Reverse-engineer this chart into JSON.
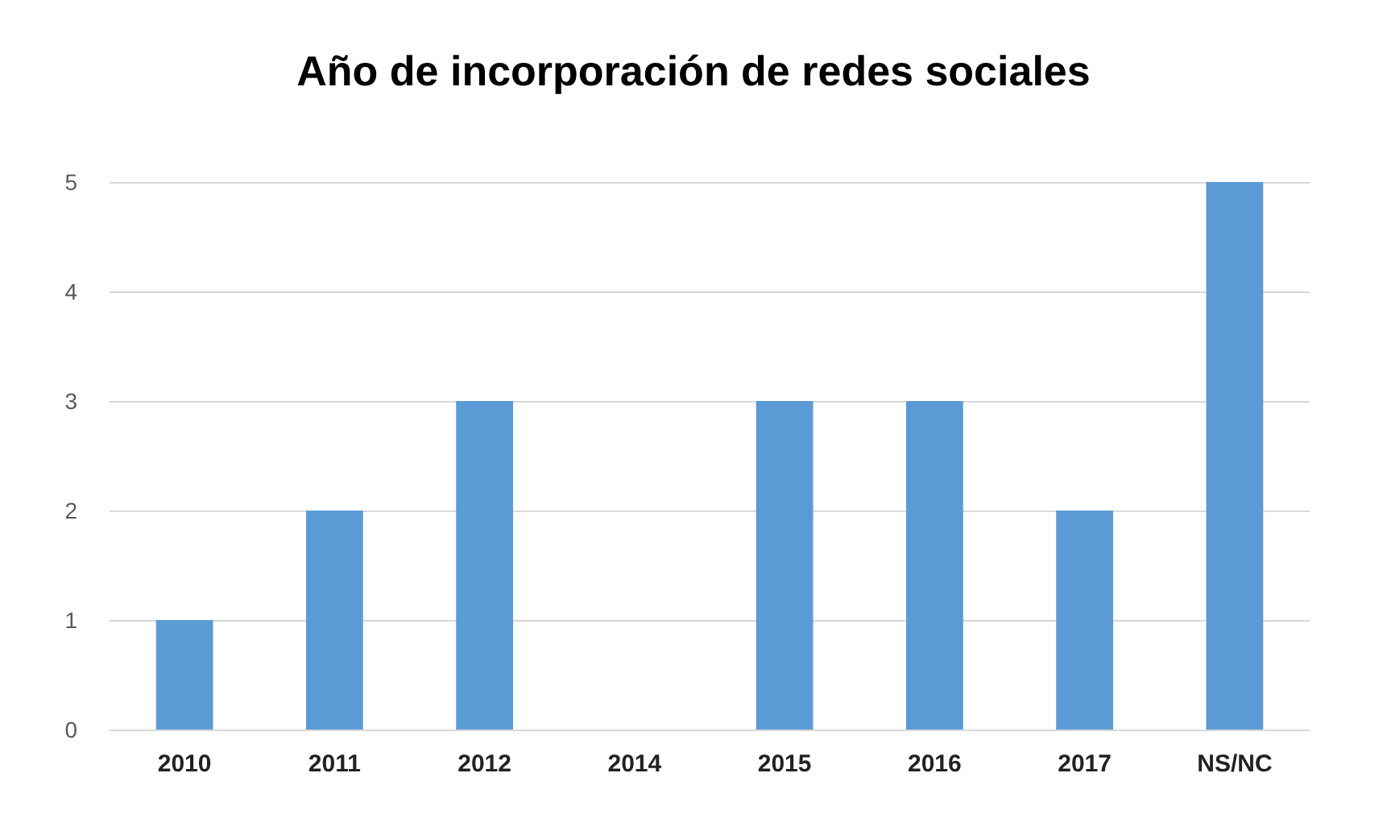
{
  "chart_data": {
    "type": "bar",
    "title": "Año de incorporación de redes sociales",
    "categories": [
      "2010",
      "2011",
      "2012",
      "2014",
      "2015",
      "2016",
      "2017",
      "NS/NC"
    ],
    "values": [
      1,
      2,
      3,
      0,
      3,
      3,
      2,
      5
    ],
    "color": "#5b9bd5",
    "ylim": [
      0,
      5
    ],
    "yticks": [
      0,
      1,
      2,
      3,
      4,
      5
    ],
    "grid": "y"
  }
}
